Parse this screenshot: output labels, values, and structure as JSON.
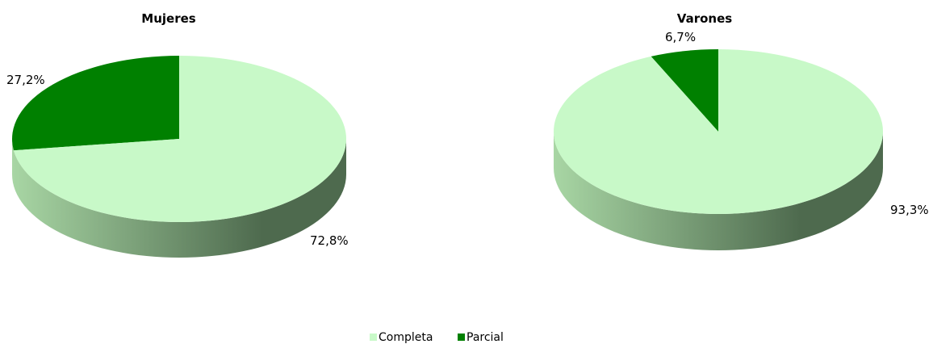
{
  "colors": {
    "Completa": "#c8f9c8",
    "Parcial": "#008000",
    "side_light": "#a8d6a4",
    "side_dark": "#4e6a4e"
  },
  "chart_data": [
    {
      "type": "pie",
      "title": "Mujeres",
      "slices": [
        {
          "label": "Completa",
          "value": 72.8,
          "display": "72,8%"
        },
        {
          "label": "Parcial",
          "value": 27.2,
          "display": "27,2%"
        }
      ]
    },
    {
      "type": "pie",
      "title": "Varones",
      "slices": [
        {
          "label": "Completa",
          "value": 93.3,
          "display": "93,3%"
        },
        {
          "label": "Parcial",
          "value": 6.7,
          "display": "6,7%"
        }
      ]
    }
  ],
  "legend": {
    "placement": "bottom",
    "items": [
      "Completa",
      "Parcial"
    ]
  }
}
